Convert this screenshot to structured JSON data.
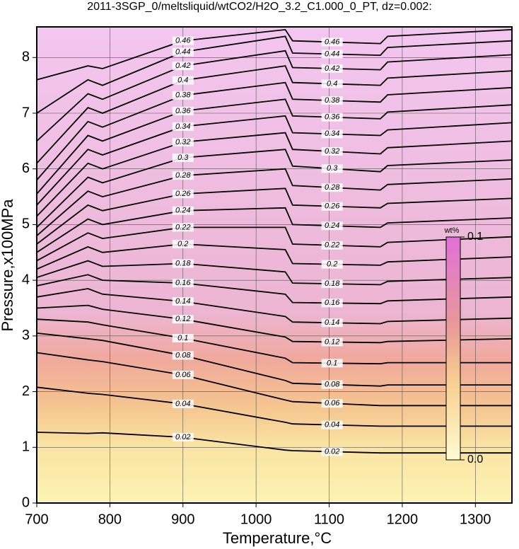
{
  "chart_data": {
    "type": "contour",
    "title": "2011-3SGP_0/meltsliquid/wtCO2/H2O_3.2_C1.000_0_PT, dz=0.002:",
    "x_label": "Temperature,°C",
    "y_label": "Pressure,x100MPa",
    "xlim": [
      700,
      1350
    ],
    "ylim": [
      0,
      8.55
    ],
    "xticks": [
      700,
      800,
      900,
      1000,
      1100,
      1200,
      1300
    ],
    "yticks": [
      0,
      1,
      2,
      3,
      4,
      5,
      6,
      7,
      8
    ],
    "grid": true,
    "x": [
      700,
      770,
      790,
      900,
      1040,
      1050,
      1170,
      1180,
      1350
    ],
    "contours": [
      {
        "level": 0.02,
        "values": [
          1.27,
          1.25,
          1.26,
          1.18,
          0.95,
          0.94,
          0.9,
          0.9,
          0.9
        ]
      },
      {
        "level": 0.04,
        "values": [
          2.08,
          1.97,
          1.95,
          1.78,
          1.45,
          1.42,
          1.38,
          1.38,
          1.38
        ]
      },
      {
        "level": 0.06,
        "values": [
          2.7,
          2.57,
          2.54,
          2.3,
          1.85,
          1.82,
          1.75,
          1.75,
          1.75
        ]
      },
      {
        "level": 0.08,
        "values": [
          3.05,
          2.95,
          2.92,
          2.65,
          2.2,
          2.15,
          2.1,
          2.12,
          2.12
        ]
      },
      {
        "level": 0.1,
        "values": [
          3.3,
          3.25,
          3.2,
          2.96,
          2.6,
          2.52,
          2.5,
          2.52,
          2.52
        ]
      },
      {
        "level": 0.12,
        "values": [
          3.5,
          3.55,
          3.48,
          3.3,
          2.98,
          2.9,
          2.88,
          2.9,
          2.95
        ]
      },
      {
        "level": 0.14,
        "values": [
          3.7,
          3.85,
          3.75,
          3.62,
          3.35,
          3.25,
          3.22,
          3.26,
          3.32
        ]
      },
      {
        "level": 0.16,
        "values": [
          3.9,
          4.1,
          4.0,
          3.95,
          3.75,
          3.6,
          3.58,
          3.63,
          3.7
        ]
      },
      {
        "level": 0.18,
        "values": [
          4.05,
          4.35,
          4.25,
          4.3,
          4.15,
          3.95,
          3.92,
          3.98,
          4.05
        ]
      },
      {
        "level": 0.2,
        "values": [
          4.2,
          4.6,
          4.5,
          4.65,
          4.55,
          4.3,
          4.27,
          4.33,
          4.42
        ]
      },
      {
        "level": 0.22,
        "values": [
          4.35,
          4.85,
          4.75,
          4.95,
          4.95,
          4.65,
          4.6,
          4.68,
          4.78
        ]
      },
      {
        "level": 0.24,
        "values": [
          4.5,
          5.1,
          5.0,
          5.25,
          5.3,
          5.0,
          4.95,
          5.03,
          5.12
        ]
      },
      {
        "level": 0.26,
        "values": [
          4.65,
          5.35,
          5.25,
          5.55,
          5.65,
          5.35,
          5.3,
          5.38,
          5.47
        ]
      },
      {
        "level": 0.28,
        "values": [
          4.8,
          5.6,
          5.5,
          5.88,
          6.0,
          5.7,
          5.62,
          5.72,
          5.82
        ]
      },
      {
        "level": 0.3,
        "values": [
          4.95,
          5.85,
          5.75,
          6.2,
          6.35,
          6.05,
          5.95,
          6.06,
          6.16
        ]
      },
      {
        "level": 0.32,
        "values": [
          5.15,
          6.1,
          6.0,
          6.48,
          6.65,
          6.35,
          6.27,
          6.38,
          6.5
        ]
      },
      {
        "level": 0.34,
        "values": [
          5.35,
          6.35,
          6.25,
          6.76,
          6.95,
          6.65,
          6.6,
          6.7,
          6.83
        ]
      },
      {
        "level": 0.36,
        "values": [
          5.55,
          6.6,
          6.5,
          7.04,
          7.25,
          6.95,
          6.9,
          7.02,
          7.15
        ]
      },
      {
        "level": 0.38,
        "values": [
          5.8,
          6.85,
          6.75,
          7.32,
          7.55,
          7.25,
          7.2,
          7.33,
          7.46
        ]
      },
      {
        "level": 0.4,
        "values": [
          6.1,
          7.1,
          7.0,
          7.59,
          7.85,
          7.55,
          7.5,
          7.63,
          7.76
        ]
      },
      {
        "level": 0.42,
        "values": [
          6.5,
          7.35,
          7.25,
          7.85,
          8.12,
          7.82,
          7.78,
          7.92,
          8.05
        ]
      },
      {
        "level": 0.44,
        "values": [
          7.0,
          7.6,
          7.5,
          8.1,
          8.38,
          8.08,
          8.04,
          8.18,
          8.3
        ]
      },
      {
        "level": 0.46,
        "values": [
          7.6,
          7.85,
          7.8,
          8.3,
          8.5,
          8.3,
          8.25,
          8.38,
          8.5
        ]
      }
    ],
    "colorbar": {
      "label": "wt%",
      "clim": [
        0,
        0.1
      ],
      "ticks": [
        {
          "value": 0,
          "label": "0.0"
        },
        0.1
      ]
    }
  }
}
